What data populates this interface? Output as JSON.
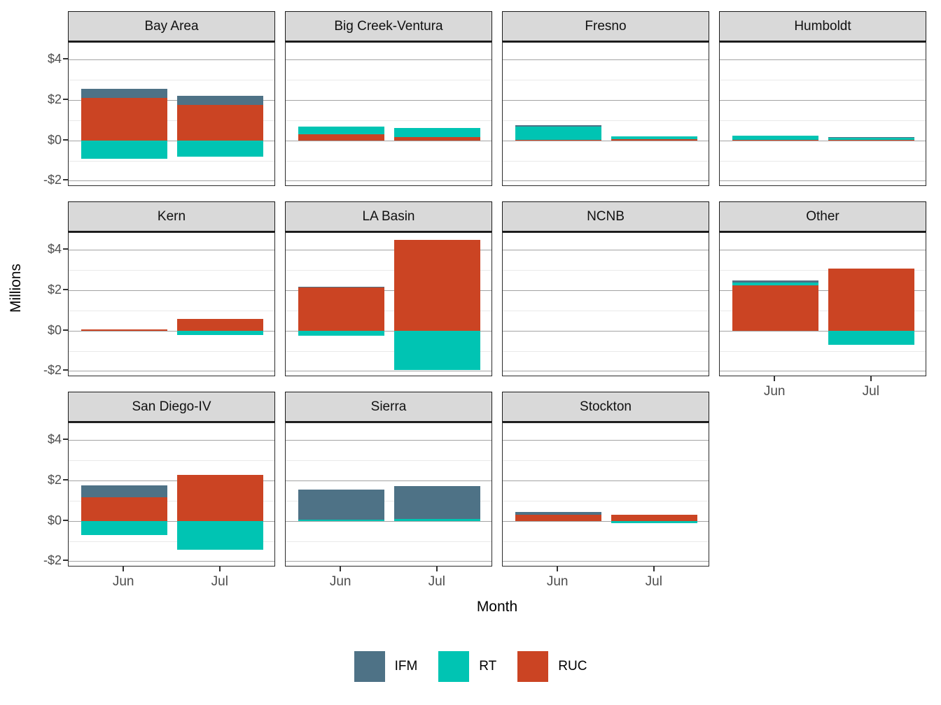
{
  "axes": {
    "y_title": "Millions",
    "x_title": "Month",
    "y_ticks": [
      {
        "label": "$4",
        "value": 4
      },
      {
        "label": "$2",
        "value": 2
      },
      {
        "label": "$0",
        "value": 0
      },
      {
        "label": "-$2",
        "value": -2
      }
    ],
    "y_minor_values": [
      3,
      1,
      -1
    ],
    "x_ticks": [
      "Jun",
      "Jul"
    ]
  },
  "legend": [
    {
      "label": "IFM",
      "color": "#4E7286"
    },
    {
      "label": "RT",
      "color": "#00C4B3"
    },
    {
      "label": "RUC",
      "color": "#CB4423"
    }
  ],
  "colors": {
    "strip_background": "#D9D9D9",
    "panel_border": "#2B2B2B",
    "major_gridline": "#A3A3A3",
    "minor_gridline": "#E9E9E9",
    "tick_text": "#4D4D4D"
  },
  "chart_data": {
    "type": "bar",
    "stacked": true,
    "categories": [
      "Jun",
      "Jul"
    ],
    "series_names": [
      "IFM",
      "RT",
      "RUC"
    ],
    "stack_order_bottom_to_top": [
      "RUC",
      "RT",
      "IFM"
    ],
    "title": "",
    "xlabel": "Month",
    "ylabel": "Millions",
    "ylim": [
      -2.3,
      4.85
    ],
    "units": "millions of dollars",
    "facets": [
      {
        "name": "Bay Area",
        "row": 1,
        "col": 1,
        "show_x_axis": false,
        "values": {
          "Jun": {
            "IFM": 0.43,
            "RT": -0.9,
            "RUC": 2.12
          },
          "Jul": {
            "IFM": 0.45,
            "RT": -0.81,
            "RUC": 1.76
          }
        }
      },
      {
        "name": "Big Creek-Ventura",
        "row": 1,
        "col": 2,
        "show_x_axis": false,
        "values": {
          "Jun": {
            "IFM": 0,
            "RT": 0.4,
            "RUC": 0.3
          },
          "Jul": {
            "IFM": 0,
            "RT": 0.42,
            "RUC": 0.18
          }
        }
      },
      {
        "name": "Fresno",
        "row": 1,
        "col": 3,
        "show_x_axis": false,
        "values": {
          "Jun": {
            "IFM": 0.04,
            "RT": 0.67,
            "RUC": 0.03
          },
          "Jul": {
            "IFM": 0,
            "RT": 0.16,
            "RUC": 0.05
          }
        }
      },
      {
        "name": "Humboldt",
        "row": 1,
        "col": 4,
        "show_x_axis": false,
        "values": {
          "Jun": {
            "IFM": 0,
            "RT": 0.21,
            "RUC": 0.03
          },
          "Jul": {
            "IFM": 0.03,
            "RT": 0.11,
            "RUC": 0.04
          }
        }
      },
      {
        "name": "Kern",
        "row": 2,
        "col": 1,
        "show_x_axis": false,
        "values": {
          "Jun": {
            "IFM": 0,
            "RT": 0,
            "RUC": 0.06
          },
          "Jul": {
            "IFM": 0,
            "RT": -0.23,
            "RUC": 0.57
          }
        }
      },
      {
        "name": "LA Basin",
        "row": 2,
        "col": 2,
        "show_x_axis": false,
        "values": {
          "Jun": {
            "IFM": 0.05,
            "RT": -0.25,
            "RUC": 2.14
          },
          "Jul": {
            "IFM": 0,
            "RT": -1.94,
            "RUC": 4.51
          }
        }
      },
      {
        "name": "NCNB",
        "row": 2,
        "col": 3,
        "show_x_axis": false,
        "values": {
          "Jun": {
            "IFM": 0,
            "RT": 0,
            "RUC": 0
          },
          "Jul": {
            "IFM": 0,
            "RT": 0,
            "RUC": 0
          }
        }
      },
      {
        "name": "Other",
        "row": 2,
        "col": 4,
        "show_x_axis": true,
        "values": {
          "Jun": {
            "IFM": 0.11,
            "RT": 0.12,
            "RUC": 2.25
          },
          "Jul": {
            "IFM": 0,
            "RT": -0.7,
            "RUC": 3.08
          }
        }
      },
      {
        "name": "San Diego-IV",
        "row": 3,
        "col": 1,
        "show_x_axis": true,
        "values": {
          "Jun": {
            "IFM": 0.57,
            "RT": -0.71,
            "RUC": 1.18
          },
          "Jul": {
            "IFM": 0,
            "RT": -1.44,
            "RUC": 2.28
          }
        }
      },
      {
        "name": "Sierra",
        "row": 3,
        "col": 2,
        "show_x_axis": true,
        "values": {
          "Jun": {
            "IFM": 1.49,
            "RT": 0.06,
            "RUC": 0
          },
          "Jul": {
            "IFM": 1.63,
            "RT": 0.08,
            "RUC": 0
          }
        }
      },
      {
        "name": "Stockton",
        "row": 3,
        "col": 3,
        "show_x_axis": true,
        "values": {
          "Jun": {
            "IFM": 0.13,
            "RT": 0,
            "RUC": 0.32
          },
          "Jul": {
            "IFM": 0,
            "RT": -0.13,
            "RUC": 0.31
          }
        }
      }
    ]
  }
}
